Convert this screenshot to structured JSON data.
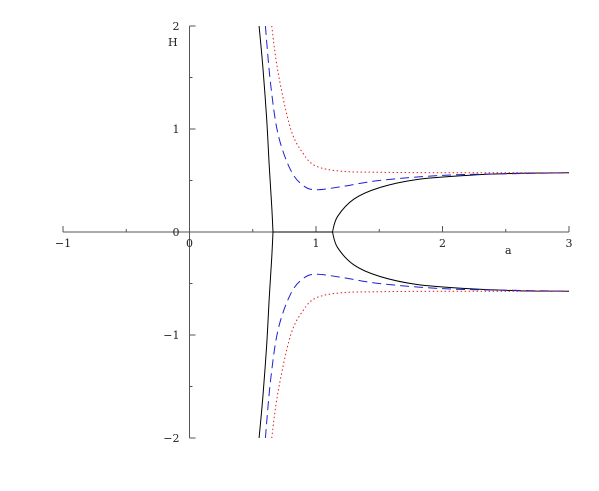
{
  "chart_data": {
    "type": "line",
    "title": "",
    "xlabel": "a",
    "ylabel": "H",
    "xlim": [
      -1,
      3
    ],
    "ylim": [
      -2,
      2
    ],
    "x_ticks": [
      -1,
      0,
      1,
      2,
      3
    ],
    "x_tick_labels": [
      "−1",
      "0",
      "1",
      "2",
      "3"
    ],
    "y_ticks": [
      -2,
      -1,
      0,
      1,
      2
    ],
    "y_tick_labels": [
      "−2",
      "−1",
      "0",
      "1",
      "2"
    ],
    "grid": false,
    "legend": "none",
    "colors": {
      "axis": "#555555",
      "solid": "#000000",
      "dashed": "#2020d0",
      "dotted": "#e02020"
    },
    "series": [
      {
        "style": "solid",
        "color": "#000000",
        "branches": [
          {
            "x": [
              0.55,
              0.58,
              0.61,
              0.63,
              0.65,
              0.66
            ],
            "y": [
              2.0,
              1.6,
              1.1,
              0.65,
              0.25,
              0.0
            ]
          },
          {
            "x": [
              0.55,
              0.58,
              0.61,
              0.63,
              0.65,
              0.66
            ],
            "y": [
              -2.0,
              -1.6,
              -1.1,
              -0.65,
              -0.25,
              0.0
            ]
          },
          {
            "x": [
              0.66,
              1.13
            ],
            "y": [
              0.0,
              0.0
            ]
          },
          {
            "x": [
              1.13,
              1.17,
              1.3,
              1.5,
              1.8,
              2.2,
              2.6,
              3.0
            ],
            "y": [
              0.0,
              0.15,
              0.32,
              0.43,
              0.51,
              0.55,
              0.57,
              0.575
            ]
          },
          {
            "x": [
              1.13,
              1.17,
              1.3,
              1.5,
              1.8,
              2.2,
              2.6,
              3.0
            ],
            "y": [
              0.0,
              -0.15,
              -0.32,
              -0.43,
              -0.51,
              -0.55,
              -0.57,
              -0.575
            ]
          }
        ]
      },
      {
        "style": "dashed",
        "color": "#2020d0",
        "branches": [
          {
            "x": [
              0.6,
              0.64,
              0.7,
              0.8,
              0.9,
              1.0,
              1.2,
              1.5,
              2.0,
              2.5,
              3.0
            ],
            "y": [
              2.0,
              1.45,
              0.95,
              0.6,
              0.45,
              0.41,
              0.44,
              0.5,
              0.55,
              0.565,
              0.575
            ]
          },
          {
            "x": [
              0.6,
              0.64,
              0.7,
              0.8,
              0.9,
              1.0,
              1.2,
              1.5,
              2.0,
              2.5,
              3.0
            ],
            "y": [
              -2.0,
              -1.45,
              -0.95,
              -0.6,
              -0.45,
              -0.41,
              -0.44,
              -0.5,
              -0.55,
              -0.565,
              -0.575
            ]
          }
        ]
      },
      {
        "style": "dotted",
        "color": "#e02020",
        "branches": [
          {
            "x": [
              0.65,
              0.7,
              0.8,
              0.9,
              1.0,
              1.2,
              1.5,
              2.0,
              2.5,
              3.0
            ],
            "y": [
              2.0,
              1.55,
              1.0,
              0.76,
              0.64,
              0.59,
              0.58,
              0.575,
              0.575,
              0.575
            ]
          },
          {
            "x": [
              0.65,
              0.7,
              0.8,
              0.9,
              1.0,
              1.2,
              1.5,
              2.0,
              2.5,
              3.0
            ],
            "y": [
              -2.0,
              -1.55,
              -1.0,
              -0.76,
              -0.64,
              -0.59,
              -0.58,
              -0.575,
              -0.575,
              -0.575
            ]
          }
        ]
      }
    ]
  }
}
